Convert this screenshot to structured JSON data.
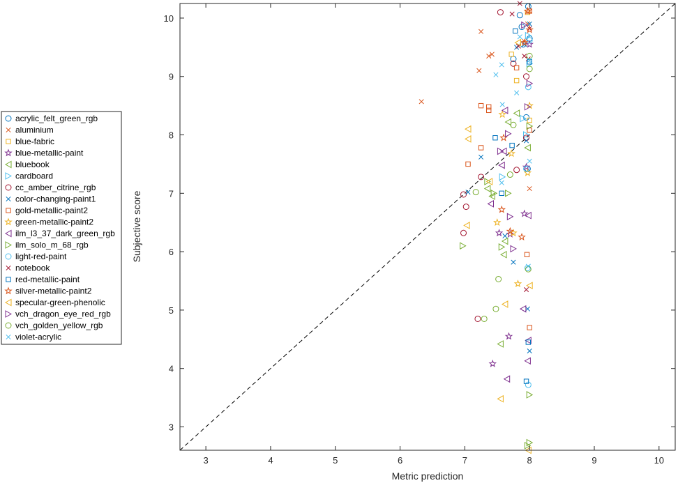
{
  "chart_data": {
    "type": "scatter",
    "title": "",
    "xlabel": "Metric prediction",
    "ylabel": "Subjective score",
    "xlim": [
      2.6,
      10.25
    ],
    "ylim": [
      2.6,
      10.25
    ],
    "xticks": [
      3,
      4,
      5,
      6,
      7,
      8,
      9,
      10
    ],
    "yticks": [
      3,
      4,
      5,
      6,
      7,
      8,
      9,
      10
    ],
    "reference_line": "y = x (dashed)",
    "grid": false,
    "legend_position": "outside-left",
    "series": [
      {
        "name": "acrylic_felt_green_rgb",
        "marker": "circle",
        "color": "#0072BD",
        "points": [
          [
            7.85,
            10.05
          ],
          [
            7.88,
            9.85
          ],
          [
            7.75,
            9.3
          ],
          [
            7.95,
            8.3
          ],
          [
            7.97,
            7.42
          ],
          [
            7.9,
            9.55
          ],
          [
            7.98,
            10.2
          ],
          [
            8.0,
            9.65
          ]
        ]
      },
      {
        "name": "aluminium",
        "marker": "x",
        "color": "#D95319",
        "points": [
          [
            6.33,
            8.57
          ],
          [
            7.25,
            9.77
          ],
          [
            7.37,
            9.35
          ],
          [
            7.42,
            9.38
          ],
          [
            7.22,
            9.1
          ],
          [
            7.92,
            9.6
          ],
          [
            8.0,
            7.08
          ],
          [
            8.0,
            10.12
          ],
          [
            7.97,
            9.9
          ]
        ]
      },
      {
        "name": "blue-fabric",
        "marker": "square",
        "color": "#EDB120",
        "points": [
          [
            7.72,
            9.38
          ],
          [
            7.8,
            8.93
          ],
          [
            7.97,
            10.1
          ],
          [
            8.0,
            8.25
          ]
        ]
      },
      {
        "name": "blue-metallic-paint",
        "marker": "star",
        "color": "#7E2F8E",
        "points": [
          [
            7.43,
            4.08
          ],
          [
            7.68,
            4.55
          ],
          [
            7.53,
            6.32
          ],
          [
            7.92,
            6.65
          ],
          [
            7.7,
            6.3
          ],
          [
            7.95,
            7.45
          ],
          [
            8.0,
            9.55
          ]
        ]
      },
      {
        "name": "bluebook",
        "marker": "triangle-left",
        "color": "#77AC30",
        "points": [
          [
            7.35,
            7.08
          ],
          [
            7.42,
            6.95
          ],
          [
            7.62,
            6.18
          ],
          [
            7.67,
            8.22
          ],
          [
            7.8,
            8.37
          ],
          [
            7.97,
            7.78
          ],
          [
            7.55,
            4.42
          ],
          [
            7.6,
            5.95
          ]
        ]
      },
      {
        "name": "cardboard",
        "marker": "triangle-right",
        "color": "#4DBEEE",
        "points": [
          [
            7.58,
            7.28
          ],
          [
            7.9,
            8.28
          ],
          [
            7.95,
            8.0
          ],
          [
            8.0,
            9.22
          ],
          [
            7.98,
            9.7
          ]
        ]
      },
      {
        "name": "cc_amber_citrine_rgb",
        "marker": "circle",
        "color": "#A2142F",
        "points": [
          [
            6.98,
            6.98
          ],
          [
            7.02,
            6.77
          ],
          [
            6.98,
            6.32
          ],
          [
            7.25,
            7.28
          ],
          [
            7.2,
            4.85
          ],
          [
            7.55,
            10.1
          ],
          [
            7.95,
            9.0
          ],
          [
            7.95,
            7.95
          ],
          [
            7.8,
            7.4
          ],
          [
            7.75,
            9.22
          ]
        ]
      },
      {
        "name": "color-changing-paint1",
        "marker": "x",
        "color": "#0072BD",
        "points": [
          [
            7.05,
            7.02
          ],
          [
            7.25,
            7.62
          ],
          [
            7.62,
            6.27
          ],
          [
            7.75,
            5.82
          ],
          [
            7.97,
            5.02
          ],
          [
            8.0,
            4.3
          ],
          [
            7.95,
            7.9
          ],
          [
            7.92,
            9.55
          ],
          [
            7.8,
            9.5
          ],
          [
            8.0,
            9.9
          ]
        ]
      },
      {
        "name": "gold-metallic-paint2",
        "marker": "square",
        "color": "#D95319",
        "points": [
          [
            7.05,
            7.5
          ],
          [
            7.25,
            7.78
          ],
          [
            7.25,
            8.5
          ],
          [
            7.37,
            8.42
          ],
          [
            7.37,
            8.48
          ],
          [
            7.8,
            9.15
          ],
          [
            7.96,
            5.95
          ],
          [
            8.0,
            4.7
          ],
          [
            8.0,
            8.08
          ],
          [
            8.0,
            10.12
          ]
        ]
      },
      {
        "name": "green-metallic-paint2",
        "marker": "star",
        "color": "#EDB120",
        "points": [
          [
            7.5,
            6.5
          ],
          [
            7.58,
            8.35
          ],
          [
            7.75,
            6.32
          ],
          [
            7.82,
            5.45
          ],
          [
            7.72,
            7.68
          ],
          [
            7.97,
            7.35
          ],
          [
            8.0,
            8.5
          ]
        ]
      },
      {
        "name": "ilm_l3_37_dark_green_rgb",
        "marker": "triangle-left",
        "color": "#7E2F8E",
        "points": [
          [
            7.4,
            6.82
          ],
          [
            7.57,
            7.48
          ],
          [
            7.62,
            8.42
          ],
          [
            7.65,
            3.82
          ],
          [
            7.9,
            5.02
          ],
          [
            7.98,
            6.62
          ],
          [
            7.97,
            4.13
          ],
          [
            7.98,
            4.48
          ],
          [
            7.6,
            7.72
          ]
        ]
      },
      {
        "name": "ilm_solo_m_68_rgb",
        "marker": "triangle-right",
        "color": "#77AC30",
        "points": [
          [
            6.97,
            6.1
          ],
          [
            7.35,
            7.2
          ],
          [
            7.45,
            7.0
          ],
          [
            7.57,
            6.08
          ],
          [
            7.67,
            7.0
          ],
          [
            7.97,
            2.68
          ],
          [
            8.0,
            2.73
          ],
          [
            8.0,
            3.55
          ],
          [
            8.0,
            8.15
          ]
        ]
      },
      {
        "name": "light-red-paint",
        "marker": "circle",
        "color": "#4DBEEE",
        "points": [
          [
            7.98,
            3.72
          ],
          [
            7.97,
            5.72
          ],
          [
            7.95,
            7.42
          ],
          [
            7.98,
            8.82
          ],
          [
            8.0,
            9.62
          ]
        ]
      },
      {
        "name": "notebook",
        "marker": "x",
        "color": "#A2142F",
        "points": [
          [
            7.73,
            10.07
          ],
          [
            7.85,
            10.25
          ],
          [
            7.92,
            9.35
          ],
          [
            7.95,
            5.35
          ],
          [
            7.98,
            9.3
          ],
          [
            8.0,
            9.82
          ],
          [
            7.83,
            9.52
          ]
        ]
      },
      {
        "name": "red-metallic-paint",
        "marker": "square",
        "color": "#0072BD",
        "points": [
          [
            7.47,
            7.95
          ],
          [
            7.57,
            7.0
          ],
          [
            7.73,
            7.82
          ],
          [
            7.78,
            9.78
          ],
          [
            7.95,
            3.78
          ],
          [
            7.98,
            4.45
          ],
          [
            8.0,
            9.25
          ]
        ]
      },
      {
        "name": "silver-metallic-paint2",
        "marker": "star",
        "color": "#D95319",
        "points": [
          [
            7.57,
            6.72
          ],
          [
            7.6,
            7.95
          ],
          [
            7.7,
            6.35
          ],
          [
            7.88,
            6.25
          ],
          [
            7.97,
            10.12
          ],
          [
            8.0,
            9.8
          ],
          [
            7.92,
            9.58
          ]
        ]
      },
      {
        "name": "specular-green-phenolic",
        "marker": "triangle-left",
        "color": "#EDB120",
        "points": [
          [
            7.03,
            6.45
          ],
          [
            7.05,
            7.93
          ],
          [
            7.05,
            8.1
          ],
          [
            7.38,
            7.2
          ],
          [
            7.55,
            3.48
          ],
          [
            7.62,
            5.1
          ],
          [
            7.98,
            2.6
          ],
          [
            8.0,
            5.42
          ],
          [
            7.82,
            9.58
          ]
        ]
      },
      {
        "name": "vch_dragon_eye_red_rgb",
        "marker": "triangle-right",
        "color": "#7E2F8E",
        "points": [
          [
            7.55,
            7.72
          ],
          [
            7.67,
            8.02
          ],
          [
            7.7,
            6.6
          ],
          [
            7.75,
            6.05
          ],
          [
            7.97,
            8.48
          ],
          [
            8.0,
            8.88
          ],
          [
            7.92,
            9.88
          ]
        ]
      },
      {
        "name": "vch_golden_yellow_rgb",
        "marker": "circle",
        "color": "#77AC30",
        "points": [
          [
            7.17,
            7.02
          ],
          [
            7.3,
            4.85
          ],
          [
            7.48,
            5.02
          ],
          [
            7.52,
            5.53
          ],
          [
            7.7,
            7.32
          ],
          [
            7.75,
            8.17
          ],
          [
            7.98,
            5.7
          ],
          [
            8.0,
            9.35
          ],
          [
            8.0,
            9.13
          ]
        ]
      },
      {
        "name": "violet-acrylic",
        "marker": "x",
        "color": "#4DBEEE",
        "points": [
          [
            7.48,
            9.03
          ],
          [
            7.57,
            9.2
          ],
          [
            7.58,
            8.52
          ],
          [
            7.57,
            7.18
          ],
          [
            7.8,
            8.72
          ],
          [
            7.98,
            5.75
          ],
          [
            8.0,
            7.55
          ],
          [
            8.0,
            9.28
          ],
          [
            7.85,
            9.68
          ]
        ]
      }
    ]
  }
}
